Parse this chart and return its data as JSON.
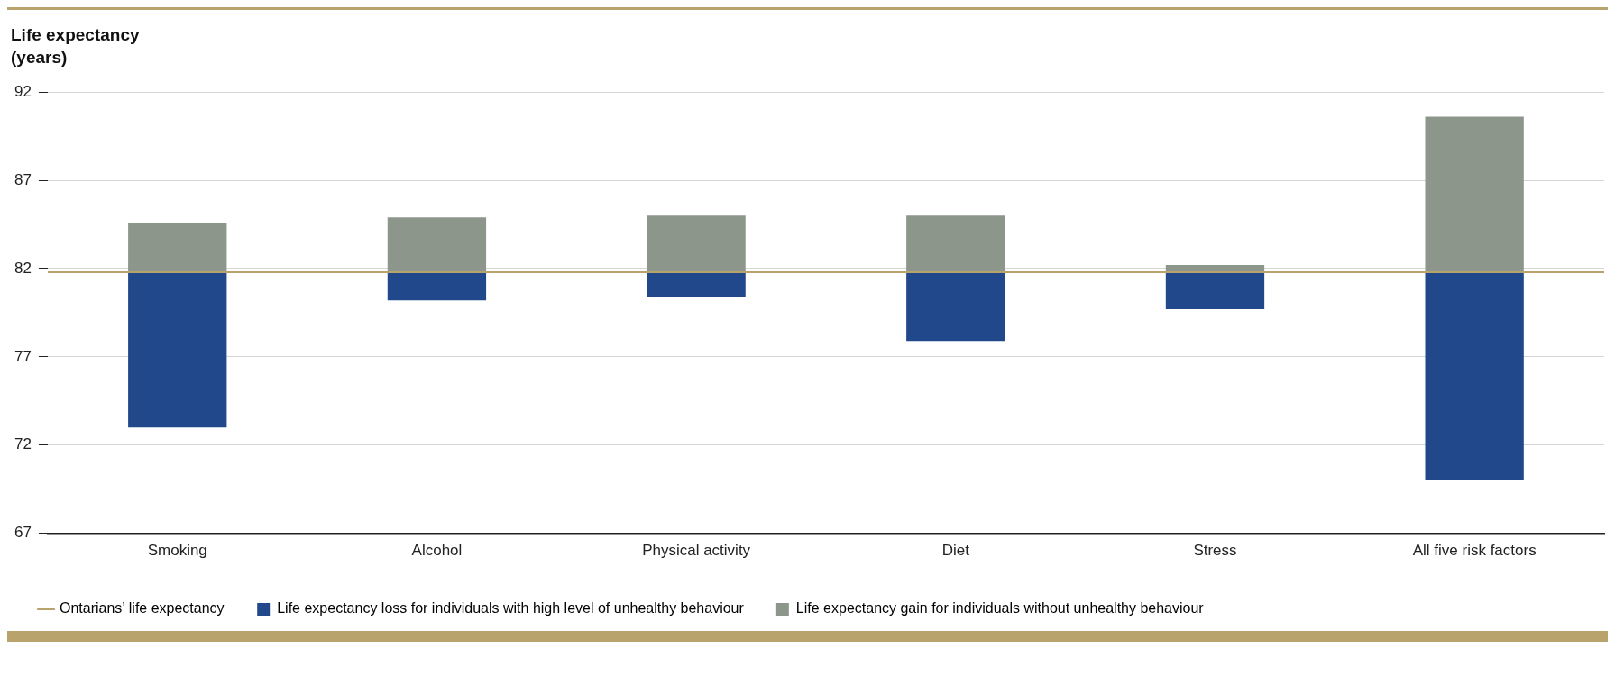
{
  "chart_data": {
    "type": "bar",
    "ylabel": "Life expectancy\n(years)",
    "categories": [
      "Smoking",
      "Alcohol",
      "Physical activity",
      "Diet",
      "Stress",
      "All five risk factors"
    ],
    "series": [
      {
        "name": "Life expectancy loss for individuals with high level of unhealthy behaviour",
        "color": "#21488a",
        "base": [
          81.8,
          81.8,
          81.8,
          81.8,
          81.8,
          81.8
        ],
        "values": [
          -8.8,
          -1.6,
          -1.4,
          -3.9,
          -2.1,
          -11.8
        ]
      },
      {
        "name": "Life expectancy gain for individuals without unhealthy behaviour",
        "color": "#8c968b",
        "base": [
          81.8,
          81.8,
          81.8,
          81.8,
          81.8,
          81.8
        ],
        "values": [
          2.8,
          3.1,
          3.2,
          3.2,
          0.4,
          8.8
        ]
      }
    ],
    "ref_lines": [
      {
        "axis": "y",
        "value": 81.8,
        "label": "Ontarians’ life expectancy",
        "color": "#b8a36c"
      }
    ],
    "ylim": [
      67,
      92
    ],
    "yticks": [
      67,
      72,
      77,
      82,
      87,
      92
    ],
    "grid": "y",
    "legend": "bottom"
  }
}
